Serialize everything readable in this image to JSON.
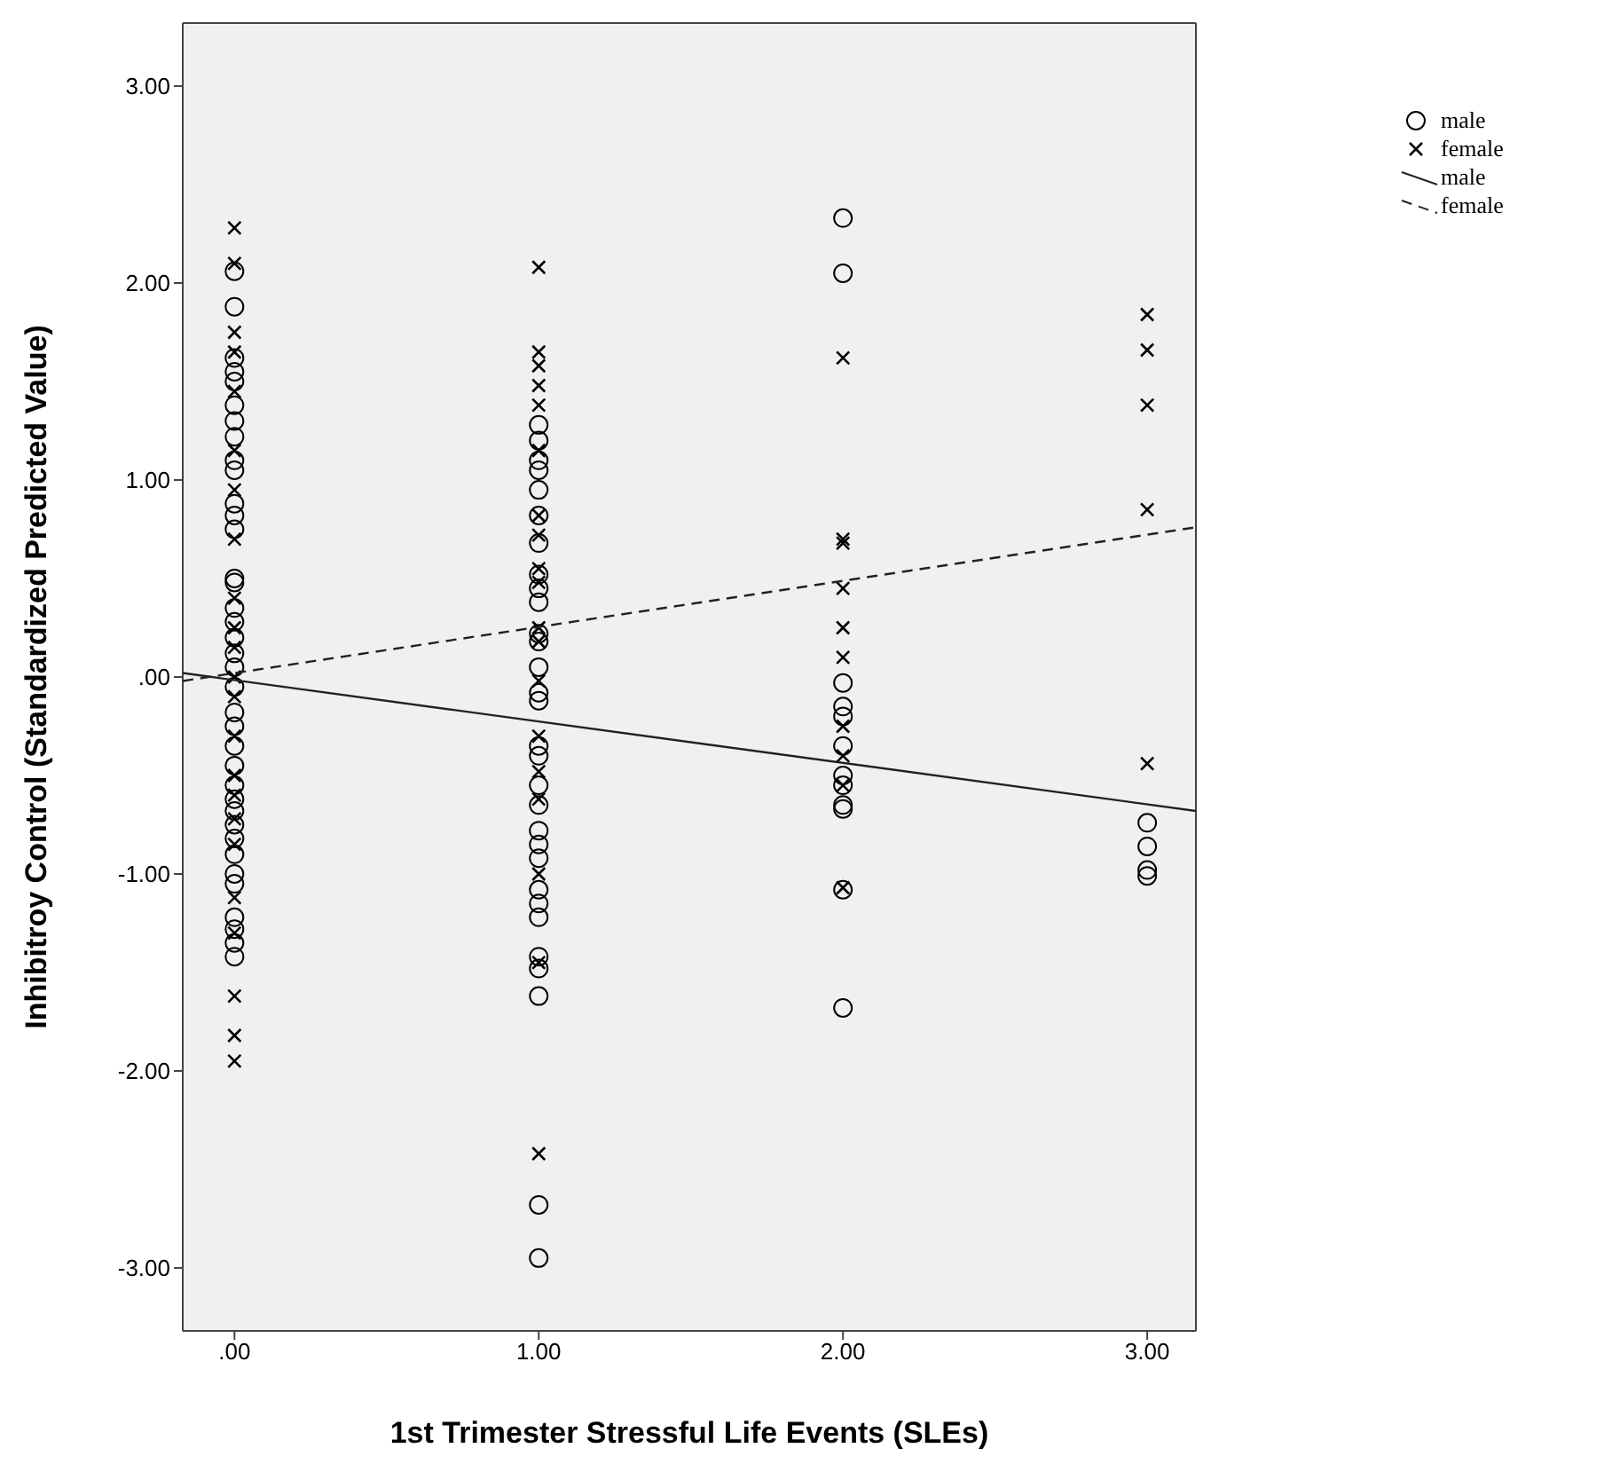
{
  "chart_data": {
    "type": "scatter",
    "xlabel": "1st Trimester Stressful Life Events (SLEs)",
    "ylabel": "Inhibitroy Control (Standardized Predicted Value)",
    "xlim": [
      -0.17,
      3.16
    ],
    "ylim": [
      -3.32,
      3.32
    ],
    "xticks": [
      {
        "value": 0,
        "label": ".00"
      },
      {
        "value": 1,
        "label": "1.00"
      },
      {
        "value": 2,
        "label": "2.00"
      },
      {
        "value": 3,
        "label": "3.00"
      }
    ],
    "yticks": [
      {
        "value": -3,
        "label": "-3.00"
      },
      {
        "value": -2,
        "label": "-2.00"
      },
      {
        "value": -1,
        "label": "-1.00"
      },
      {
        "value": 0,
        "label": ".00"
      },
      {
        "value": 1,
        "label": "1.00"
      },
      {
        "value": 2,
        "label": "2.00"
      },
      {
        "value": 3,
        "label": "3.00"
      }
    ],
    "legend": "top right",
    "series": [
      {
        "name": "male",
        "marker": "circle",
        "color": "#000000",
        "x": [
          0,
          0,
          0,
          0,
          0,
          0,
          0,
          0,
          0,
          0,
          0,
          0,
          0,
          0,
          0,
          0,
          0,
          0,
          0,
          0,
          0,
          0,
          0,
          0,
          0,
          0,
          0,
          0,
          0,
          0,
          0,
          0,
          0,
          0,
          0,
          0,
          0,
          1,
          1,
          1,
          1,
          1,
          1,
          1,
          1,
          1,
          1,
          1,
          1,
          1,
          1,
          1,
          1,
          1,
          1,
          1,
          1,
          1,
          1,
          1,
          1,
          1,
          1,
          1,
          1,
          1,
          1,
          2,
          2,
          2,
          2,
          2,
          2,
          2,
          2,
          2,
          2,
          2,
          2,
          3,
          3,
          3,
          3
        ],
        "values": [
          2.06,
          1.88,
          1.62,
          1.55,
          1.5,
          1.38,
          1.3,
          1.22,
          1.1,
          1.05,
          0.88,
          0.82,
          0.75,
          0.5,
          0.48,
          0.35,
          0.28,
          0.2,
          0.12,
          0.05,
          -0.05,
          -0.18,
          -0.25,
          -0.35,
          -0.45,
          -0.55,
          -0.62,
          -0.68,
          -0.75,
          -0.82,
          -0.9,
          -1.0,
          -1.05,
          -1.22,
          -1.28,
          -1.35,
          -1.42,
          1.28,
          1.2,
          1.1,
          1.05,
          0.95,
          0.82,
          0.68,
          0.52,
          0.45,
          0.38,
          0.22,
          0.18,
          0.05,
          -0.08,
          -0.12,
          -0.35,
          -0.4,
          -0.55,
          -0.65,
          -0.78,
          -0.85,
          -0.92,
          -1.08,
          -1.15,
          -1.22,
          -1.42,
          -1.48,
          -1.62,
          -2.68,
          -2.95,
          2.33,
          2.05,
          -0.03,
          -0.15,
          -0.2,
          -0.35,
          -0.5,
          -0.55,
          -0.65,
          -0.67,
          -1.08,
          -1.68,
          -0.74,
          -0.86,
          -0.98,
          -1.01
        ]
      },
      {
        "name": "female",
        "marker": "cross",
        "color": "#000000",
        "x": [
          0,
          0,
          0,
          0,
          0,
          0,
          0,
          0,
          0,
          0,
          0,
          0,
          0,
          0,
          0,
          0,
          0,
          0,
          0,
          0,
          0,
          0,
          0,
          1,
          1,
          1,
          1,
          1,
          1,
          1,
          1,
          1,
          1,
          1,
          1,
          1,
          1,
          1,
          1,
          1,
          1,
          1,
          2,
          2,
          2,
          2,
          2,
          2,
          2,
          2,
          2,
          2,
          3,
          3,
          3,
          3,
          3
        ],
        "values": [
          2.28,
          2.1,
          1.75,
          1.65,
          1.45,
          1.15,
          0.95,
          0.7,
          0.4,
          0.25,
          0.15,
          0.0,
          -0.1,
          -0.3,
          -0.5,
          -0.6,
          -0.72,
          -0.85,
          -1.12,
          -1.3,
          -1.62,
          -1.82,
          -1.95,
          2.08,
          1.65,
          1.58,
          1.48,
          1.38,
          1.15,
          0.82,
          0.72,
          0.55,
          0.48,
          0.25,
          0.18,
          -0.02,
          -0.3,
          -0.48,
          -0.62,
          -1.0,
          -1.45,
          -2.42,
          1.62,
          0.7,
          0.68,
          0.45,
          0.25,
          0.1,
          -0.25,
          -0.4,
          -0.55,
          -1.07,
          1.84,
          1.66,
          1.38,
          0.85,
          -0.44
        ]
      },
      {
        "name": "male",
        "type": "line",
        "marker": "none",
        "line_style": "solid",
        "color": "#222222",
        "x": [
          -0.17,
          3.16
        ],
        "values": [
          0.02,
          -0.68
        ]
      },
      {
        "name": "female",
        "type": "line",
        "marker": "none",
        "line_style": "dashed",
        "color": "#222222",
        "x": [
          -0.17,
          3.16
        ],
        "values": [
          -0.02,
          0.76
        ]
      }
    ]
  }
}
